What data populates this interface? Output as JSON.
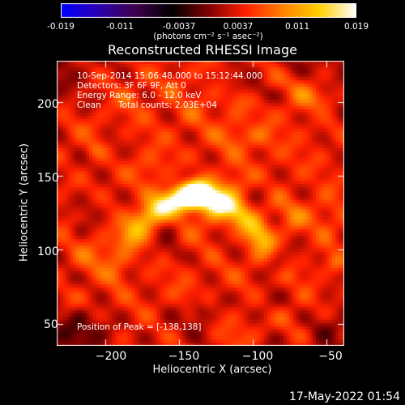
{
  "colorbar": {
    "ticks": [
      "-0.019",
      "-0.011",
      "-0.0037",
      "0.0037",
      "0.011",
      "0.019"
    ],
    "units": "(photons cm⁻² s⁻¹ asec⁻²)"
  },
  "chart_data": {
    "type": "heatmap",
    "title": "Reconstructed RHESSI Image",
    "xlabel": "Heliocentric X (arcsec)",
    "ylabel": "Heliocentric Y (arcsec)",
    "xlim": [
      -233,
      -38
    ],
    "ylim": [
      35,
      228
    ],
    "x_ticks": [
      "−200",
      "−150",
      "−100",
      "−50"
    ],
    "x_tick_values": [
      -200,
      -150,
      -100,
      -50
    ],
    "y_ticks": [
      "200",
      "150",
      "100",
      "50"
    ],
    "y_tick_values": [
      200,
      150,
      100,
      50
    ],
    "zlim": [
      -0.019,
      0.019
    ],
    "colormap": [
      "#0000ff",
      "#2a00b0",
      "#400050",
      "#000000",
      "#800000",
      "#ff2000",
      "#ff8000",
      "#ffd000",
      "#ffffff"
    ],
    "peak_position": [
      -138,
      138
    ],
    "annotations": {
      "time_range": "10-Sep-2014 15:06:48.000 to 15:12:44.000",
      "detectors": "Detectors: 3F 6F 9F, Att 0",
      "energy": "Energy Range: 6.0 - 12.0 keV",
      "clean": "Clean",
      "total_counts": "Total counts: 2.03E+04",
      "peak": "Position of Peak = [-138,138]"
    }
  },
  "footer": "17-May-2022 01:54"
}
